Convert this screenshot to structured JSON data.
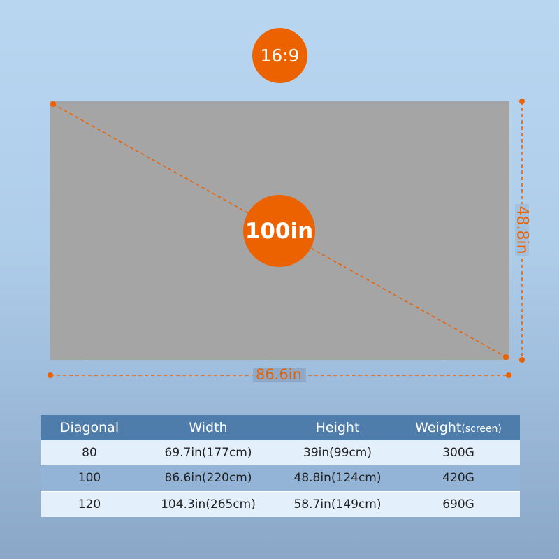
{
  "aspect_ratio": "16:9",
  "diagonal_label": "100in",
  "width_label": "86.6in",
  "height_label": "48.8in",
  "colors": {
    "accent": "#ec6200",
    "screen": "#a5a5a5",
    "table_header": "#4f7dab"
  },
  "table": {
    "headers": {
      "diagonal": "Diagonal",
      "width": "Width",
      "height": "Height",
      "weight": "Weight",
      "weight_note": "(screen)"
    },
    "rows": [
      {
        "diagonal": "80",
        "width": "69.7in(177cm)",
        "height": "39in(99cm)",
        "weight": "300G"
      },
      {
        "diagonal": "100",
        "width": "86.6in(220cm)",
        "height": "48.8in(124cm)",
        "weight": "420G"
      },
      {
        "diagonal": "120",
        "width": "104.3in(265cm)",
        "height": "58.7in(149cm)",
        "weight": "690G"
      }
    ]
  }
}
